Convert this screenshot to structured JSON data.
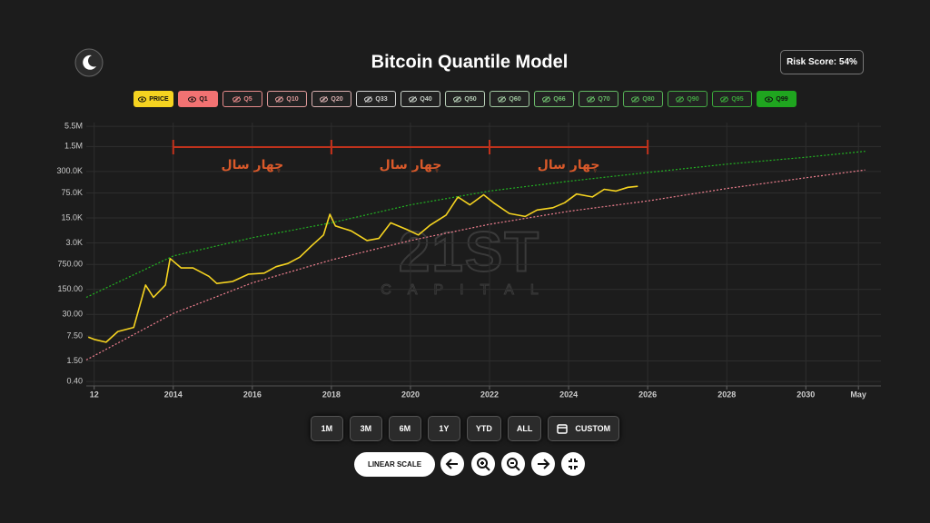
{
  "header": {
    "title": "Bitcoin Quantile Model",
    "risk_score": "Risk Score: 54%"
  },
  "toggles": [
    {
      "label": "PRICE",
      "color": "#f5d320",
      "active": true
    },
    {
      "label": "Q1",
      "color": "#f27272",
      "active": true
    },
    {
      "label": "Q5",
      "color": "#e58a8a",
      "active": false
    },
    {
      "label": "Q10",
      "color": "#e09a9a",
      "active": false
    },
    {
      "label": "Q20",
      "color": "#d9b0b0",
      "active": false
    },
    {
      "label": "Q33",
      "color": "#d0d0d0",
      "active": false
    },
    {
      "label": "Q40",
      "color": "#c8d0c8",
      "active": false
    },
    {
      "label": "Q50",
      "color": "#b8d0b8",
      "active": false
    },
    {
      "label": "Q60",
      "color": "#a0c8a0",
      "active": false
    },
    {
      "label": "Q66",
      "color": "#6fbf6f",
      "active": false
    },
    {
      "label": "Q70",
      "color": "#66bb66",
      "active": false
    },
    {
      "label": "Q80",
      "color": "#55b055",
      "active": false
    },
    {
      "label": "Q90",
      "color": "#44a844",
      "active": false
    },
    {
      "label": "Q95",
      "color": "#3aa83a",
      "active": false
    },
    {
      "label": "Q99",
      "color": "#1fa51f",
      "active": true
    }
  ],
  "watermark": {
    "main": "21ST",
    "sub": "CAPITAL"
  },
  "ranges": [
    "1M",
    "3M",
    "6M",
    "1Y",
    "YTD",
    "ALL",
    "CUSTOM"
  ],
  "scale_button": "LINEAR SCALE",
  "chart_data": {
    "type": "line",
    "log_y": true,
    "grid": true,
    "xlim": [
      2011.8,
      2031.9
    ],
    "xticks": [
      {
        "value": 2012,
        "label": "12"
      },
      2014,
      2016,
      2018,
      2020,
      2022,
      2024,
      2026,
      2028,
      2030,
      {
        "value": 2031.33,
        "label": "May"
      }
    ],
    "ylim": [
      0.3,
      7000000
    ],
    "yticks": [
      {
        "value": 0.4,
        "label": "0.40"
      },
      {
        "value": 1.5,
        "label": "1.50"
      },
      {
        "value": 7.5,
        "label": "7.50"
      },
      {
        "value": 30,
        "label": "30.00"
      },
      {
        "value": 150,
        "label": "150.00"
      },
      {
        "value": 750,
        "label": "750.00"
      },
      {
        "value": 3000,
        "label": "3.0K"
      },
      {
        "value": 15000,
        "label": "15.0K"
      },
      {
        "value": 75000,
        "label": "75.0K"
      },
      {
        "value": 300000,
        "label": "300.0K"
      },
      {
        "value": 1500000,
        "label": "1.5M"
      },
      {
        "value": 5500000,
        "label": "5.5M"
      }
    ],
    "series": [
      {
        "color": "#f5d320",
        "dash": false,
        "x": [
          2011.85,
          2012.0,
          2012.3,
          2012.6,
          2013.0,
          2013.3,
          2013.5,
          2013.8,
          2013.92,
          2014.2,
          2014.5,
          2014.9,
          2015.1,
          2015.5,
          2015.9,
          2016.3,
          2016.6,
          2016.9,
          2017.2,
          2017.5,
          2017.8,
          2017.96,
          2018.1,
          2018.5,
          2018.9,
          2019.2,
          2019.5,
          2019.9,
          2020.2,
          2020.5,
          2020.9,
          2021.2,
          2021.5,
          2021.85,
          2022.1,
          2022.5,
          2022.9,
          2023.2,
          2023.6,
          2023.9,
          2024.2,
          2024.6,
          2024.9,
          2025.2,
          2025.5,
          2025.75
        ],
        "values": [
          7,
          6,
          5,
          10,
          13,
          200,
          90,
          200,
          1100,
          600,
          600,
          350,
          220,
          250,
          400,
          430,
          650,
          800,
          1200,
          2500,
          5000,
          19000,
          9000,
          6500,
          3500,
          4000,
          11000,
          7200,
          5000,
          9500,
          18000,
          58000,
          35000,
          67000,
          40000,
          20000,
          16500,
          25000,
          29000,
          40000,
          70000,
          58000,
          95000,
          85000,
          108000,
          115000
        ]
      },
      {
        "color": "#22b322",
        "dash": true,
        "x": [
          2011.8,
          2014,
          2016,
          2018,
          2020,
          2022,
          2024,
          2026,
          2028,
          2030,
          2031.5
        ],
        "values": [
          90,
          1300,
          4200,
          11000,
          35000,
          85000,
          160000,
          280000,
          480000,
          750000,
          1100000
        ]
      },
      {
        "color": "#ef7f8f",
        "dash": true,
        "x": [
          2011.8,
          2014,
          2016,
          2018,
          2020,
          2022,
          2024,
          2026,
          2028,
          2030,
          2031.5
        ],
        "values": [
          1.6,
          32,
          230,
          1000,
          3500,
          10000,
          23000,
          45000,
          100000,
          200000,
          330000
        ]
      }
    ],
    "annotations": [
      {
        "start": 2014,
        "end": 2018,
        "text": "چهار سال"
      },
      {
        "start": 2018,
        "end": 2022,
        "text": "چهار سال"
      },
      {
        "start": 2022,
        "end": 2026,
        "text": "چهار سال"
      }
    ]
  }
}
